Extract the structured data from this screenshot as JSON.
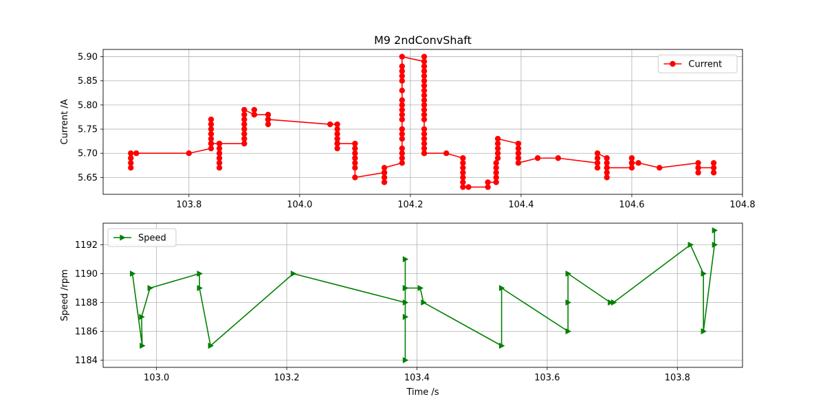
{
  "title": "M9 2ndConvShaft",
  "chart_data": [
    {
      "type": "line",
      "title": "M9 2ndConvShaft",
      "xlabel": "",
      "ylabel": "Current /A",
      "xlim": [
        103.645,
        104.8
      ],
      "ylim": [
        5.615,
        5.915
      ],
      "xticks": [
        103.8,
        104.0,
        104.2,
        104.4,
        104.6,
        104.8
      ],
      "xtick_labels": [
        "103.8",
        "104.0",
        "104.2",
        "104.4",
        "104.6",
        "104.8"
      ],
      "yticks": [
        5.65,
        5.7,
        5.75,
        5.8,
        5.85,
        5.9
      ],
      "ytick_labels": [
        "5.65",
        "5.70",
        "5.75",
        "5.80",
        "5.85",
        "5.90"
      ],
      "grid": true,
      "legend_position": "top-right",
      "series": [
        {
          "name": "Current",
          "color": "#ff0000",
          "marker": "circle",
          "points": [
            [
              103.695,
              5.67
            ],
            [
              103.695,
              5.68
            ],
            [
              103.695,
              5.69
            ],
            [
              103.695,
              5.7
            ],
            [
              103.705,
              5.7
            ],
            [
              103.8,
              5.7
            ],
            [
              103.84,
              5.71
            ],
            [
              103.84,
              5.72
            ],
            [
              103.84,
              5.73
            ],
            [
              103.84,
              5.74
            ],
            [
              103.84,
              5.75
            ],
            [
              103.84,
              5.76
            ],
            [
              103.84,
              5.77
            ],
            [
              103.84,
              5.72
            ],
            [
              103.855,
              5.72
            ],
            [
              103.855,
              5.71
            ],
            [
              103.855,
              5.7
            ],
            [
              103.855,
              5.69
            ],
            [
              103.855,
              5.68
            ],
            [
              103.855,
              5.67
            ],
            [
              103.855,
              5.72
            ],
            [
              103.9,
              5.72
            ],
            [
              103.9,
              5.73
            ],
            [
              103.9,
              5.74
            ],
            [
              103.9,
              5.75
            ],
            [
              103.9,
              5.76
            ],
            [
              103.9,
              5.77
            ],
            [
              103.9,
              5.78
            ],
            [
              103.9,
              5.79
            ],
            [
              103.918,
              5.78
            ],
            [
              103.918,
              5.79
            ],
            [
              103.918,
              5.78
            ],
            [
              103.943,
              5.78
            ],
            [
              103.943,
              5.77
            ],
            [
              103.943,
              5.76
            ],
            [
              103.943,
              5.77
            ],
            [
              104.055,
              5.76
            ],
            [
              104.068,
              5.76
            ],
            [
              104.068,
              5.75
            ],
            [
              104.068,
              5.74
            ],
            [
              104.068,
              5.73
            ],
            [
              104.068,
              5.72
            ],
            [
              104.068,
              5.71
            ],
            [
              104.068,
              5.72
            ],
            [
              104.1,
              5.72
            ],
            [
              104.1,
              5.71
            ],
            [
              104.1,
              5.7
            ],
            [
              104.1,
              5.69
            ],
            [
              104.1,
              5.68
            ],
            [
              104.1,
              5.67
            ],
            [
              104.1,
              5.65
            ],
            [
              104.153,
              5.66
            ],
            [
              104.153,
              5.64
            ],
            [
              104.153,
              5.65
            ],
            [
              104.153,
              5.66
            ],
            [
              104.153,
              5.67
            ],
            [
              104.185,
              5.68
            ],
            [
              104.185,
              5.69
            ],
            [
              104.185,
              5.7
            ],
            [
              104.185,
              5.71
            ],
            [
              104.185,
              5.73
            ],
            [
              104.185,
              5.74
            ],
            [
              104.185,
              5.75
            ],
            [
              104.185,
              5.77
            ],
            [
              104.185,
              5.78
            ],
            [
              104.185,
              5.79
            ],
            [
              104.185,
              5.8
            ],
            [
              104.185,
              5.81
            ],
            [
              104.185,
              5.83
            ],
            [
              104.185,
              5.85
            ],
            [
              104.185,
              5.86
            ],
            [
              104.185,
              5.87
            ],
            [
              104.185,
              5.88
            ],
            [
              104.185,
              5.9
            ],
            [
              104.225,
              5.89
            ],
            [
              104.225,
              5.88
            ],
            [
              104.225,
              5.87
            ],
            [
              104.225,
              5.86
            ],
            [
              104.225,
              5.85
            ],
            [
              104.225,
              5.84
            ],
            [
              104.225,
              5.83
            ],
            [
              104.225,
              5.82
            ],
            [
              104.225,
              5.81
            ],
            [
              104.225,
              5.8
            ],
            [
              104.225,
              5.79
            ],
            [
              104.225,
              5.78
            ],
            [
              104.225,
              5.77
            ],
            [
              104.225,
              5.75
            ],
            [
              104.225,
              5.74
            ],
            [
              104.225,
              5.73
            ],
            [
              104.225,
              5.72
            ],
            [
              104.225,
              5.71
            ],
            [
              104.225,
              5.7
            ],
            [
              104.225,
              5.9
            ],
            [
              104.225,
              5.7
            ],
            [
              104.265,
              5.7
            ],
            [
              104.295,
              5.69
            ],
            [
              104.295,
              5.68
            ],
            [
              104.295,
              5.67
            ],
            [
              104.295,
              5.66
            ],
            [
              104.295,
              5.65
            ],
            [
              104.295,
              5.64
            ],
            [
              104.295,
              5.63
            ],
            [
              104.305,
              5.63
            ],
            [
              104.34,
              5.63
            ],
            [
              104.34,
              5.64
            ],
            [
              104.355,
              5.64
            ],
            [
              104.355,
              5.65
            ],
            [
              104.355,
              5.66
            ],
            [
              104.355,
              5.67
            ],
            [
              104.355,
              5.68
            ],
            [
              104.358,
              5.69
            ],
            [
              104.358,
              5.7
            ],
            [
              104.358,
              5.71
            ],
            [
              104.358,
              5.72
            ],
            [
              104.358,
              5.73
            ],
            [
              104.395,
              5.72
            ],
            [
              104.395,
              5.71
            ],
            [
              104.395,
              5.7
            ],
            [
              104.395,
              5.69
            ],
            [
              104.395,
              5.68
            ],
            [
              104.43,
              5.69
            ],
            [
              104.467,
              5.69
            ],
            [
              104.538,
              5.68
            ],
            [
              104.538,
              5.67
            ],
            [
              104.538,
              5.68
            ],
            [
              104.538,
              5.69
            ],
            [
              104.538,
              5.7
            ],
            [
              104.555,
              5.69
            ],
            [
              104.555,
              5.68
            ],
            [
              104.555,
              5.67
            ],
            [
              104.555,
              5.66
            ],
            [
              104.555,
              5.65
            ],
            [
              104.555,
              5.67
            ],
            [
              104.6,
              5.67
            ],
            [
              104.6,
              5.68
            ],
            [
              104.6,
              5.69
            ],
            [
              104.6,
              5.68
            ],
            [
              104.612,
              5.68
            ],
            [
              104.65,
              5.67
            ],
            [
              104.72,
              5.68
            ],
            [
              104.72,
              5.67
            ],
            [
              104.72,
              5.66
            ],
            [
              104.72,
              5.67
            ],
            [
              104.748,
              5.67
            ],
            [
              104.748,
              5.66
            ],
            [
              104.748,
              5.68
            ]
          ]
        }
      ]
    },
    {
      "type": "line",
      "title": "",
      "xlabel": "Time /s",
      "ylabel": "Speed /rpm",
      "xlim": [
        102.918,
        103.9
      ],
      "ylim": [
        1183.5,
        1193.5
      ],
      "xticks": [
        103.0,
        103.2,
        103.4,
        103.6,
        103.8
      ],
      "xtick_labels": [
        "103.0",
        "103.2",
        "103.4",
        "103.6",
        "103.8"
      ],
      "yticks": [
        1184,
        1186,
        1188,
        1190,
        1192
      ],
      "ytick_labels": [
        "1184",
        "1186",
        "1188",
        "1190",
        "1192"
      ],
      "grid": true,
      "legend_position": "top-left",
      "series": [
        {
          "name": "Speed",
          "color": "#008000",
          "marker": "triangle-right",
          "points": [
            [
              102.963,
              1190
            ],
            [
              102.978,
              1185
            ],
            [
              102.977,
              1187
            ],
            [
              102.99,
              1189
            ],
            [
              103.066,
              1190
            ],
            [
              103.066,
              1189
            ],
            [
              103.083,
              1185
            ],
            [
              103.21,
              1190
            ],
            [
              103.382,
              1188
            ],
            [
              103.382,
              1184
            ],
            [
              103.382,
              1191
            ],
            [
              103.382,
              1189
            ],
            [
              103.382,
              1187
            ],
            [
              103.382,
              1189
            ],
            [
              103.405,
              1189
            ],
            [
              103.41,
              1188
            ],
            [
              103.53,
              1185
            ],
            [
              103.53,
              1189
            ],
            [
              103.632,
              1186
            ],
            [
              103.632,
              1188
            ],
            [
              103.632,
              1190
            ],
            [
              103.697,
              1188
            ],
            [
              103.702,
              1188
            ],
            [
              103.82,
              1192
            ],
            [
              103.84,
              1190
            ],
            [
              103.84,
              1186
            ],
            [
              103.857,
              1192
            ],
            [
              103.857,
              1193
            ]
          ]
        }
      ]
    }
  ]
}
